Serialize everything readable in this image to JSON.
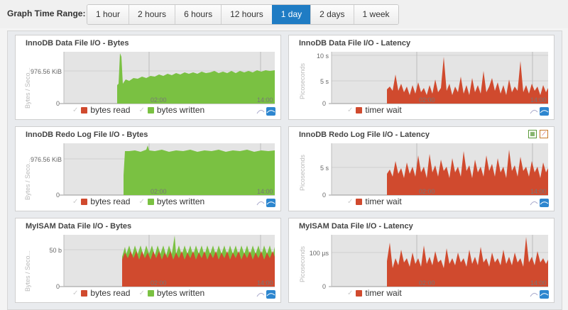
{
  "toolbar": {
    "label": "Graph Time Range:",
    "ranges": [
      "1 hour",
      "2 hours",
      "6 hours",
      "12 hours",
      "1 day",
      "2 days",
      "1 week"
    ],
    "active": "1 day"
  },
  "colors": {
    "read": "#d04a2e",
    "written": "#7ac142",
    "wait": "#d04a2e",
    "active": "#1f7cc4"
  },
  "panels": [
    {
      "title": "InnoDB Data File I/O - Bytes",
      "ylabel": "Bytes / Seco...",
      "ytick": "976.56 KiB",
      "zero": "0",
      "x1": "02:00",
      "x2": "14:00",
      "legend": [
        "bytes read",
        "bytes written"
      ]
    },
    {
      "title": "InnoDB Data File I/O - Latency",
      "ylabel": "Picoseconds",
      "ytick": "10 s",
      "ytick2": "5 s",
      "zero": "0",
      "x1": "02:00",
      "x2": "14:00",
      "legend": [
        "timer wait"
      ]
    },
    {
      "title": "InnoDB Redo Log File I/O - Bytes",
      "ylabel": "Bytes / Seco...",
      "ytick": "976.56 KiB",
      "zero": "0",
      "x1": "02:00",
      "x2": "14:00",
      "legend": [
        "bytes read",
        "bytes written"
      ]
    },
    {
      "title": "InnoDB Redo Log File I/O - Latency",
      "ylabel": "Picoseconds",
      "ytick": "5 s",
      "zero": "0",
      "x1": "02:00",
      "x2": "14:00",
      "legend": [
        "timer wait"
      ]
    },
    {
      "title": "MyISAM Data File I/O - Bytes",
      "ylabel": "Bytes / Seco...",
      "ytick": "50 b",
      "zero": "0",
      "x1": "02:00",
      "x2": "14:00",
      "legend": [
        "bytes read",
        "bytes written"
      ]
    },
    {
      "title": "MyISAM Data File I/O - Latency",
      "ylabel": "Picoseconds",
      "ytick": "100 µs",
      "zero": "0",
      "x1": "02:00",
      "x2": "14:00",
      "legend": [
        "timer wait"
      ]
    }
  ]
}
